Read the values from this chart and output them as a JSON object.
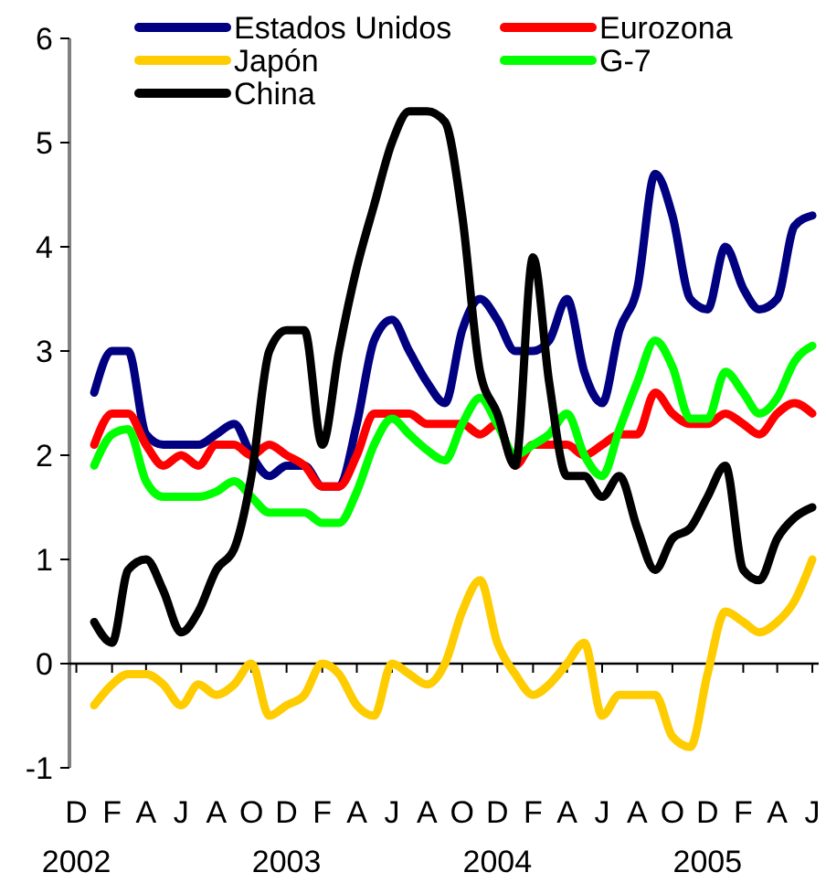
{
  "chart_data": {
    "type": "line",
    "x": [
      "2003-01",
      "2003-02",
      "2003-03",
      "2003-04",
      "2003-05",
      "2003-06",
      "2003-07",
      "2003-08",
      "2003-09",
      "2003-10",
      "2003-11",
      "2003-12",
      "2004-01",
      "2004-02",
      "2004-03",
      "2004-04",
      "2004-05",
      "2004-06",
      "2004-07",
      "2004-08",
      "2004-09",
      "2004-10",
      "2004-11",
      "2004-12",
      "2005-01",
      "2005-02",
      "2005-03",
      "2005-04",
      "2005-05",
      "2005-06",
      "2005-07",
      "2005-08",
      "2005-09",
      "2005-10",
      "2005-11",
      "2005-12",
      "2006-01",
      "2006-02",
      "2006-03",
      "2006-04",
      "2006-05",
      "2006-06"
    ],
    "series": [
      {
        "name": "Estados Unidos",
        "color": "#000080",
        "values": [
          2.6,
          3.0,
          3.0,
          2.2,
          2.1,
          2.1,
          2.1,
          2.2,
          2.3,
          2.0,
          1.8,
          1.9,
          1.9,
          1.7,
          1.7,
          2.3,
          3.1,
          3.3,
          3.0,
          2.7,
          2.5,
          3.2,
          3.5,
          3.3,
          3.0,
          3.0,
          3.1,
          3.5,
          2.8,
          2.5,
          3.2,
          3.6,
          4.7,
          4.3,
          3.5,
          3.4,
          4.0,
          3.6,
          3.4,
          3.5,
          4.2,
          4.3
        ]
      },
      {
        "name": "Eurozona",
        "color": "#ff0000",
        "values": [
          2.1,
          2.4,
          2.4,
          2.1,
          1.9,
          2.0,
          1.9,
          2.1,
          2.1,
          2.0,
          2.1,
          2.0,
          1.9,
          1.7,
          1.7,
          2.0,
          2.4,
          2.4,
          2.4,
          2.3,
          2.3,
          2.3,
          2.2,
          2.3,
          1.9,
          2.1,
          2.1,
          2.1,
          2.0,
          2.1,
          2.2,
          2.2,
          2.6,
          2.4,
          2.3,
          2.3,
          2.4,
          2.3,
          2.2,
          2.4,
          2.5,
          2.4
        ]
      },
      {
        "name": "Japón",
        "color": "#ffcc00",
        "values": [
          -0.4,
          -0.2,
          -0.1,
          -0.1,
          -0.2,
          -0.4,
          -0.2,
          -0.3,
          -0.2,
          0.0,
          -0.5,
          -0.4,
          -0.3,
          0.0,
          -0.1,
          -0.4,
          -0.5,
          0.0,
          -0.1,
          -0.2,
          0.0,
          0.5,
          0.8,
          0.2,
          -0.1,
          -0.3,
          -0.2,
          0.0,
          0.2,
          -0.5,
          -0.3,
          -0.3,
          -0.3,
          -0.7,
          -0.8,
          -0.1,
          0.5,
          0.4,
          0.3,
          0.4,
          0.6,
          1.0
        ]
      },
      {
        "name": "G-7",
        "color": "#00ff00",
        "values": [
          1.9,
          2.2,
          2.25,
          1.75,
          1.6,
          1.6,
          1.6,
          1.65,
          1.75,
          1.6,
          1.45,
          1.45,
          1.45,
          1.35,
          1.35,
          1.65,
          2.1,
          2.35,
          2.2,
          2.05,
          1.95,
          2.3,
          2.55,
          2.3,
          2.0,
          2.1,
          2.2,
          2.4,
          2.0,
          1.8,
          2.25,
          2.7,
          3.1,
          2.85,
          2.35,
          2.35,
          2.8,
          2.6,
          2.4,
          2.55,
          2.9,
          3.05
        ]
      },
      {
        "name": "China",
        "color": "#000000",
        "values": [
          0.4,
          0.2,
          0.9,
          1.0,
          0.7,
          0.3,
          0.5,
          0.9,
          1.1,
          1.8,
          3.0,
          3.2,
          3.2,
          2.1,
          3.0,
          3.8,
          4.4,
          5.0,
          5.3,
          5.3,
          5.2,
          4.3,
          2.8,
          2.4,
          1.9,
          3.9,
          2.7,
          1.8,
          1.8,
          1.6,
          1.8,
          1.3,
          0.9,
          1.2,
          1.3,
          1.6,
          1.9,
          0.9,
          0.8,
          1.2,
          1.4,
          1.5
        ]
      }
    ],
    "xlim": [
      "2002-11-19",
      "2006-06-12"
    ],
    "xticks": [
      {
        "value": "2002-12",
        "label": "D\n2002"
      },
      {
        "value": "2003-02",
        "label": "F"
      },
      {
        "value": "2003-04",
        "label": "A"
      },
      {
        "value": "2003-06",
        "label": "J"
      },
      {
        "value": "2003-08",
        "label": "A"
      },
      {
        "value": "2003-10",
        "label": "O"
      },
      {
        "value": "2003-12",
        "label": "D\n2003"
      },
      {
        "value": "2004-02",
        "label": "F"
      },
      {
        "value": "2004-04",
        "label": "A"
      },
      {
        "value": "2004-06",
        "label": "J"
      },
      {
        "value": "2004-08",
        "label": "A"
      },
      {
        "value": "2004-10",
        "label": "O"
      },
      {
        "value": "2004-12",
        "label": "D\n2004"
      },
      {
        "value": "2005-02",
        "label": "F"
      },
      {
        "value": "2005-04",
        "label": "A"
      },
      {
        "value": "2005-06",
        "label": "J"
      },
      {
        "value": "2005-08",
        "label": "A"
      },
      {
        "value": "2005-10",
        "label": "O"
      },
      {
        "value": "2005-12",
        "label": "D\n2005"
      },
      {
        "value": "2006-02",
        "label": "F"
      },
      {
        "value": "2006-04",
        "label": "A"
      },
      {
        "value": "2006-06",
        "label": "J"
      }
    ],
    "ylim": [
      -1,
      6
    ],
    "yticks": [
      -1,
      0,
      1,
      2,
      3,
      4,
      5,
      6
    ],
    "legend": "top",
    "marker": "none",
    "line_style": "solid"
  }
}
